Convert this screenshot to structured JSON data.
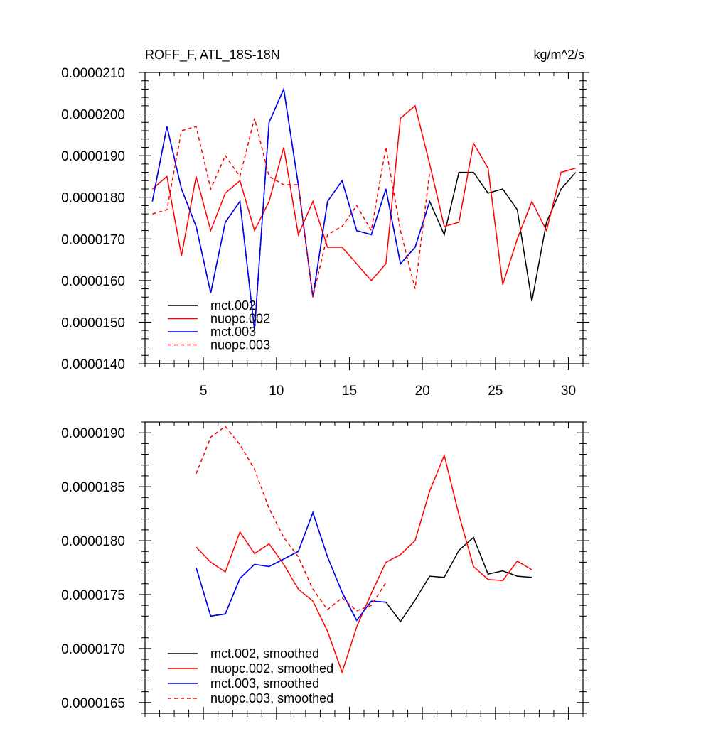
{
  "chart_data": [
    {
      "type": "line",
      "title": "ROFF_F, ATL_18S-18N",
      "units": "kg/m^2/s",
      "xlabel": "",
      "ylabel": "",
      "xlim": [
        1,
        31
      ],
      "ylim": [
        1.4e-05,
        2.1e-05
      ],
      "xticks": [
        5,
        10,
        15,
        20,
        25,
        30
      ],
      "yticks": [
        1.4e-05,
        1.5e-05,
        1.6e-05,
        1.7e-05,
        1.8e-05,
        1.9e-05,
        2e-05,
        2.1e-05
      ],
      "ytick_labels": [
        "0.0000140",
        "0.0000150",
        "0.0000160",
        "0.0000170",
        "0.0000180",
        "0.0000190",
        "0.0000200",
        "0.0000210"
      ],
      "xtick_labels": [
        "5",
        "10",
        "15",
        "20",
        "25",
        "30"
      ],
      "legend_position": "bottom-left",
      "series": [
        {
          "name": "mct.002",
          "color": "#000000",
          "dash": "solid",
          "x": [
            1.5,
            2.5,
            3.5,
            4.5,
            5.5,
            6.5,
            7.5,
            8.5,
            9.5,
            10.5,
            11.5,
            12.5,
            13.5,
            14.5,
            15.5,
            16.5,
            17.5,
            18.5,
            19.5,
            20.5,
            21.5,
            22.5,
            23.5,
            24.5,
            25.5,
            26.5,
            27.5,
            28.5,
            29.5,
            30.5
          ],
          "y": [
            1.79e-05,
            1.97e-05,
            1.82e-05,
            1.73e-05,
            1.57e-05,
            1.74e-05,
            1.79e-05,
            1.48e-05,
            1.98e-05,
            2.06e-05,
            1.83e-05,
            1.56e-05,
            1.79e-05,
            1.84e-05,
            1.72e-05,
            1.71e-05,
            1.82e-05,
            1.64e-05,
            1.68e-05,
            1.79e-05,
            1.71e-05,
            1.86e-05,
            1.86e-05,
            1.81e-05,
            1.82e-05,
            1.77e-05,
            1.55e-05,
            1.74e-05,
            1.82e-05,
            1.86e-05
          ]
        },
        {
          "name": "nuopc.002",
          "color": "#ff0000",
          "dash": "solid",
          "x": [
            1.5,
            2.5,
            3.5,
            4.5,
            5.5,
            6.5,
            7.5,
            8.5,
            9.5,
            10.5,
            11.5,
            12.5,
            13.5,
            14.5,
            15.5,
            16.5,
            17.5,
            18.5,
            19.5,
            20.5,
            21.5,
            22.5,
            23.5,
            24.5,
            25.5,
            26.5,
            27.5,
            28.5,
            29.5,
            30.5
          ],
          "y": [
            1.82e-05,
            1.85e-05,
            1.66e-05,
            1.85e-05,
            1.72e-05,
            1.81e-05,
            1.84e-05,
            1.72e-05,
            1.79e-05,
            1.92e-05,
            1.71e-05,
            1.79e-05,
            1.68e-05,
            1.68e-05,
            1.64e-05,
            1.6e-05,
            1.64e-05,
            1.99e-05,
            2.02e-05,
            1.88e-05,
            1.73e-05,
            1.74e-05,
            1.93e-05,
            1.87e-05,
            1.59e-05,
            1.7e-05,
            1.79e-05,
            1.72e-05,
            1.86e-05,
            1.87e-05
          ]
        },
        {
          "name": "mct.003",
          "color": "#0000ff",
          "dash": "solid",
          "x": [
            1.5,
            2.5,
            3.5,
            4.5,
            5.5,
            6.5,
            7.5,
            8.5,
            9.5,
            10.5,
            11.5,
            12.5,
            13.5,
            14.5,
            15.5,
            16.5,
            17.5,
            18.5,
            19.5,
            20.5
          ],
          "y": [
            1.79e-05,
            1.97e-05,
            1.82e-05,
            1.73e-05,
            1.57e-05,
            1.74e-05,
            1.79e-05,
            1.48e-05,
            1.98e-05,
            2.06e-05,
            1.83e-05,
            1.56e-05,
            1.79e-05,
            1.84e-05,
            1.72e-05,
            1.71e-05,
            1.82e-05,
            1.64e-05,
            1.68e-05,
            1.79e-05
          ]
        },
        {
          "name": "nuopc.003",
          "color": "#ff0000",
          "dash": "dashed",
          "x": [
            1.5,
            2.5,
            3.5,
            4.5,
            5.5,
            6.5,
            7.5,
            8.5,
            9.5,
            10.5,
            11.5,
            12.5,
            13.5,
            14.5,
            15.5,
            16.5,
            17.5,
            18.5,
            19.5,
            20.5
          ],
          "y": [
            1.76e-05,
            1.77e-05,
            1.96e-05,
            1.97e-05,
            1.82e-05,
            1.9e-05,
            1.85e-05,
            1.99e-05,
            1.85e-05,
            1.83e-05,
            1.83e-05,
            1.56e-05,
            1.71e-05,
            1.73e-05,
            1.78e-05,
            1.72e-05,
            1.92e-05,
            1.72e-05,
            1.58e-05,
            1.86e-05
          ]
        }
      ]
    },
    {
      "type": "line",
      "title": "",
      "xlabel": "",
      "ylabel": "",
      "xlim": [
        1,
        31
      ],
      "ylim": [
        1.64e-05,
        1.91e-05
      ],
      "xticks": [
        5,
        10,
        15,
        20,
        25,
        30
      ],
      "yticks": [
        1.65e-05,
        1.7e-05,
        1.75e-05,
        1.8e-05,
        1.85e-05,
        1.9e-05
      ],
      "ytick_labels": [
        "0.0000165",
        "0.0000170",
        "0.0000175",
        "0.0000180",
        "0.0000185",
        "0.0000190"
      ],
      "xtick_labels": [],
      "legend_position": "bottom-left",
      "series": [
        {
          "name": "mct.002, smoothed",
          "color": "#000000",
          "dash": "solid",
          "x": [
            4.5,
            5.5,
            6.5,
            7.5,
            8.5,
            9.5,
            10.5,
            11.5,
            12.5,
            13.5,
            14.5,
            15.5,
            16.5,
            17.5,
            18.5,
            19.5,
            20.5,
            21.5,
            22.5,
            23.5,
            24.5,
            25.5,
            26.5,
            27.5
          ],
          "y": [
            1.775e-05,
            1.73e-05,
            1.732e-05,
            1.765e-05,
            1.778e-05,
            1.776e-05,
            1.783e-05,
            1.79e-05,
            1.826e-05,
            1.785e-05,
            1.752e-05,
            1.726e-05,
            1.744e-05,
            1.743e-05,
            1.725e-05,
            1.745e-05,
            1.767e-05,
            1.766e-05,
            1.791e-05,
            1.803e-05,
            1.769e-05,
            1.772e-05,
            1.767e-05,
            1.766e-05
          ]
        },
        {
          "name": "nuopc.002, smoothed",
          "color": "#ff0000",
          "dash": "solid",
          "x": [
            4.5,
            5.5,
            6.5,
            7.5,
            8.5,
            9.5,
            10.5,
            11.5,
            12.5,
            13.5,
            14.5,
            15.5,
            16.5,
            17.5,
            18.5,
            19.5,
            20.5,
            21.5,
            22.5,
            23.5,
            24.5,
            25.5,
            26.5,
            27.5
          ],
          "y": [
            1.794e-05,
            1.78e-05,
            1.771e-05,
            1.808e-05,
            1.788e-05,
            1.797e-05,
            1.778e-05,
            1.755e-05,
            1.744e-05,
            1.716e-05,
            1.678e-05,
            1.72e-05,
            1.751e-05,
            1.78e-05,
            1.787e-05,
            1.8e-05,
            1.846e-05,
            1.879e-05,
            1.824e-05,
            1.776e-05,
            1.764e-05,
            1.763e-05,
            1.781e-05,
            1.773e-05
          ]
        },
        {
          "name": "mct.003, smoothed",
          "color": "#0000ff",
          "dash": "solid",
          "x": [
            4.5,
            5.5,
            6.5,
            7.5,
            8.5,
            9.5,
            10.5,
            11.5,
            12.5,
            13.5,
            14.5,
            15.5,
            16.5,
            17.5
          ],
          "y": [
            1.775e-05,
            1.73e-05,
            1.732e-05,
            1.765e-05,
            1.778e-05,
            1.776e-05,
            1.783e-05,
            1.79e-05,
            1.826e-05,
            1.785e-05,
            1.752e-05,
            1.726e-05,
            1.744e-05,
            1.743e-05
          ]
        },
        {
          "name": "nuopc.003, smoothed",
          "color": "#ff0000",
          "dash": "dashed",
          "x": [
            4.5,
            5.5,
            6.5,
            7.5,
            8.5,
            9.5,
            10.5,
            11.5,
            12.5,
            13.5,
            14.5,
            15.5,
            16.5,
            17.5
          ],
          "y": [
            1.862e-05,
            1.896e-05,
            1.906e-05,
            1.889e-05,
            1.866e-05,
            1.83e-05,
            1.803e-05,
            1.785e-05,
            1.755e-05,
            1.736e-05,
            1.747e-05,
            1.735e-05,
            1.74e-05,
            1.761e-05
          ]
        }
      ]
    }
  ]
}
